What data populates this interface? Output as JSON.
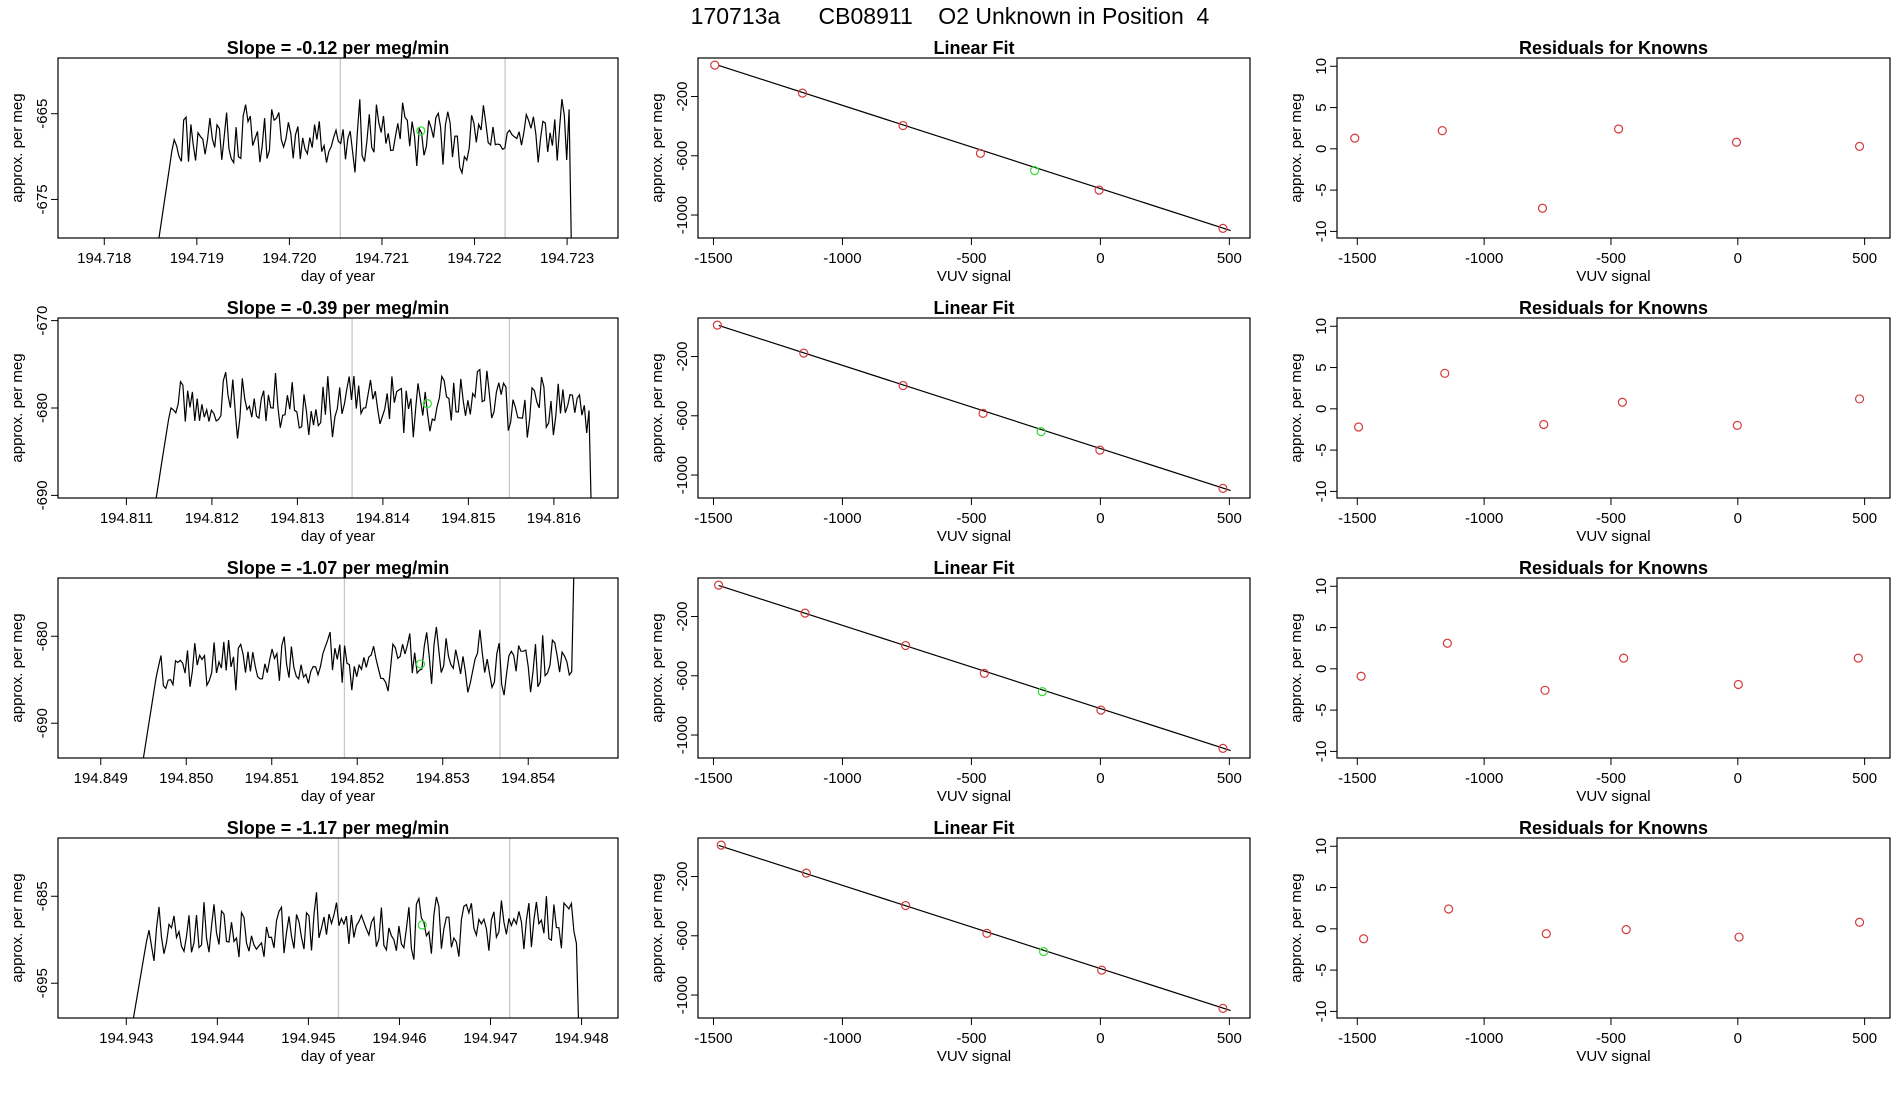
{
  "title": "170713a      CB08911    O2 Unknown in Position  4",
  "colors": {
    "line": "#000000",
    "known_point": "#d33a3a",
    "unknown_point": "#33dd33",
    "marker_line": "#c8c8c8",
    "frame": "#000000"
  },
  "chart_data": [
    {
      "type": "line",
      "row": 1,
      "title": "Slope =  -0.12  per meg/min",
      "xlabel": "day of year",
      "ylabel": "approx. per meg",
      "xlim": [
        194.7175,
        194.72355
      ],
      "ylim": [
        -679.5,
        -658.5
      ],
      "xticks": [
        194.718,
        194.719,
        194.72,
        194.721,
        194.722,
        194.723
      ],
      "xtick_labels": [
        "194.718",
        "194.719",
        "194.720",
        "194.721",
        "194.722",
        "194.723"
      ],
      "yticks": [
        -675,
        -665
      ],
      "ytick_labels": [
        "-675",
        "-665"
      ],
      "marker_lines": [
        194.72055,
        194.72233
      ],
      "x_start": 194.71855,
      "x_end": 194.72315,
      "n_points": 180,
      "base": -667.5,
      "amp": 3.0,
      "seed": 11,
      "unknown_point": {
        "x": 194.72142,
        "y": -667.0
      }
    },
    {
      "type": "line",
      "row": 2,
      "title": "Slope =  -0.39  per meg/min",
      "xlabel": "day of year",
      "ylabel": "approx. per meg",
      "xlim": [
        194.8102,
        194.81675
      ],
      "ylim": [
        -690.3,
        -669.7
      ],
      "xticks": [
        194.811,
        194.812,
        194.813,
        194.814,
        194.815,
        194.816
      ],
      "xtick_labels": [
        "194.811",
        "194.812",
        "194.813",
        "194.814",
        "194.815",
        "194.816"
      ],
      "yticks": [
        -690,
        -680,
        -670
      ],
      "ytick_labels": [
        "-690",
        "-680",
        "-670"
      ],
      "marker_lines": [
        194.81364,
        194.81548
      ],
      "x_start": 194.8113,
      "x_end": 194.81655,
      "n_points": 190,
      "base": -679.5,
      "amp": 3.0,
      "seed": 23,
      "unknown_point": {
        "x": 194.81452,
        "y": -679.5
      }
    },
    {
      "type": "line",
      "row": 3,
      "title": "Slope =  -1.07  per meg/min",
      "xlabel": "day of year",
      "ylabel": "approx. per meg",
      "xlim": [
        194.8485,
        194.85505
      ],
      "ylim": [
        -694.0,
        -673.3
      ],
      "xticks": [
        194.849,
        194.85,
        194.851,
        194.852,
        194.853,
        194.854
      ],
      "xtick_labels": [
        "194.849",
        "194.850",
        "194.851",
        "194.852",
        "194.853",
        "194.854"
      ],
      "yticks": [
        -690,
        -680
      ],
      "ytick_labels": [
        "-690",
        "-680"
      ],
      "marker_lines": [
        194.85185,
        194.85367
      ],
      "x_start": 194.84945,
      "x_end": 194.85465,
      "n_points": 185,
      "base": -683.0,
      "amp": 2.6,
      "seed": 37,
      "unknown_point": {
        "x": 194.85274,
        "y": -683.2
      }
    },
    {
      "type": "line",
      "row": 4,
      "title": "Slope =  -1.17  per meg/min",
      "xlabel": "day of year",
      "ylabel": "approx. per meg",
      "xlim": [
        194.94225,
        194.9484
      ],
      "ylim": [
        -699.0,
        -678.3
      ],
      "xticks": [
        194.943,
        194.944,
        194.945,
        194.946,
        194.947,
        194.948
      ],
      "xtick_labels": [
        "194.943",
        "194.944",
        "194.945",
        "194.946",
        "194.947",
        "194.948"
      ],
      "yticks": [
        -695,
        -685
      ],
      "ytick_labels": [
        "-695",
        "-685"
      ],
      "marker_lines": [
        194.94533,
        194.94721
      ],
      "x_start": 194.94303,
      "x_end": 194.94808,
      "n_points": 185,
      "base": -688.5,
      "amp": 2.8,
      "seed": 53,
      "unknown_point": {
        "x": 194.94625,
        "y": -688.3
      }
    },
    {
      "type": "scatter",
      "row": 1,
      "title": "Linear Fit",
      "xlabel": "VUV signal",
      "ylabel": "approx. per meg",
      "xlim": [
        -1560,
        580
      ],
      "ylim": [
        -1155,
        60
      ],
      "xticks": [
        -1500,
        -1000,
        -500,
        0,
        500
      ],
      "xtick_labels": [
        "-1500",
        "-1000",
        "-500",
        "0",
        "500"
      ],
      "yticks": [
        -1000,
        -600,
        -200
      ],
      "ytick_labels": [
        "-1000",
        "-600",
        "-200"
      ],
      "fit_line": [
        [
          -1480,
          10
        ],
        [
          505,
          -1105
        ]
      ],
      "known_points": [
        [
          -1495,
          12
        ],
        [
          -1155,
          -177
        ],
        [
          -765,
          -396
        ],
        [
          -465,
          -584
        ],
        [
          -5,
          -832
        ],
        [
          475,
          -1090
        ]
      ],
      "unknown_points": [
        [
          -255,
          -700
        ]
      ]
    },
    {
      "type": "scatter",
      "row": 2,
      "title": "Linear Fit",
      "xlabel": "VUV signal",
      "ylabel": "approx. per meg",
      "xlim": [
        -1560,
        580
      ],
      "ylim": [
        -1155,
        60
      ],
      "xticks": [
        -1500,
        -1000,
        -500,
        0,
        500
      ],
      "xtick_labels": [
        "-1500",
        "-1000",
        "-500",
        "0",
        "500"
      ],
      "yticks": [
        -1000,
        -600,
        -200
      ],
      "ytick_labels": [
        "-1000",
        "-600",
        "-200"
      ],
      "fit_line": [
        [
          -1480,
          10
        ],
        [
          505,
          -1105
        ]
      ],
      "known_points": [
        [
          -1485,
          12
        ],
        [
          -1150,
          -177
        ],
        [
          -765,
          -396
        ],
        [
          -455,
          -584
        ],
        [
          -2,
          -832
        ],
        [
          475,
          -1090
        ]
      ],
      "unknown_points": [
        [
          -230,
          -707
        ]
      ]
    },
    {
      "type": "scatter",
      "row": 3,
      "title": "Linear Fit",
      "xlabel": "VUV signal",
      "ylabel": "approx. per meg",
      "xlim": [
        -1560,
        580
      ],
      "ylim": [
        -1155,
        60
      ],
      "xticks": [
        -1500,
        -1000,
        -500,
        0,
        500
      ],
      "xtick_labels": [
        "-1500",
        "-1000",
        "-500",
        "0",
        "500"
      ],
      "yticks": [
        -1000,
        -600,
        -200
      ],
      "ytick_labels": [
        "-1000",
        "-600",
        "-200"
      ],
      "fit_line": [
        [
          -1480,
          10
        ],
        [
          505,
          -1105
        ]
      ],
      "known_points": [
        [
          -1480,
          12
        ],
        [
          -1145,
          -177
        ],
        [
          -755,
          -396
        ],
        [
          -450,
          -584
        ],
        [
          2,
          -832
        ],
        [
          475,
          -1090
        ]
      ],
      "unknown_points": [
        [
          -225,
          -707
        ]
      ]
    },
    {
      "type": "scatter",
      "row": 4,
      "title": "Linear Fit",
      "xlabel": "VUV signal",
      "ylabel": "approx. per meg",
      "xlim": [
        -1560,
        580
      ],
      "ylim": [
        -1155,
        60
      ],
      "xticks": [
        -1500,
        -1000,
        -500,
        0,
        500
      ],
      "xtick_labels": [
        "-1500",
        "-1000",
        "-500",
        "0",
        "500"
      ],
      "yticks": [
        -1000,
        -600,
        -200
      ],
      "ytick_labels": [
        "-1000",
        "-600",
        "-200"
      ],
      "fit_line": [
        [
          -1480,
          10
        ],
        [
          505,
          -1105
        ]
      ],
      "known_points": [
        [
          -1470,
          12
        ],
        [
          -1140,
          -177
        ],
        [
          -755,
          -396
        ],
        [
          -440,
          -584
        ],
        [
          5,
          -832
        ],
        [
          475,
          -1090
        ]
      ],
      "unknown_points": [
        [
          -220,
          -707
        ]
      ]
    },
    {
      "type": "scatter",
      "row": 1,
      "title": "Residuals for Knowns",
      "xlabel": "VUV signal",
      "ylabel": "approx. per meg",
      "xlim": [
        -1580,
        600
      ],
      "ylim": [
        -10.8,
        11.0
      ],
      "xticks": [
        -1500,
        -1000,
        -500,
        0,
        500
      ],
      "xtick_labels": [
        "-1500",
        "-1000",
        "-500",
        "0",
        "500"
      ],
      "yticks": [
        -10,
        -5,
        0,
        5,
        10
      ],
      "ytick_labels": [
        "-10",
        "-5",
        "0",
        "5",
        "10"
      ],
      "known_points": [
        [
          -1510,
          1.3
        ],
        [
          -1165,
          2.2
        ],
        [
          -770,
          -7.2
        ],
        [
          -470,
          2.4
        ],
        [
          -5,
          0.8
        ],
        [
          480,
          0.3
        ]
      ]
    },
    {
      "type": "scatter",
      "row": 2,
      "title": "Residuals for Knowns",
      "xlabel": "VUV signal",
      "ylabel": "approx. per meg",
      "xlim": [
        -1580,
        600
      ],
      "ylim": [
        -10.8,
        11.0
      ],
      "xticks": [
        -1500,
        -1000,
        -500,
        0,
        500
      ],
      "xtick_labels": [
        "-1500",
        "-1000",
        "-500",
        "0",
        "500"
      ],
      "yticks": [
        -10,
        -5,
        0,
        5,
        10
      ],
      "ytick_labels": [
        "-10",
        "-5",
        "0",
        "5",
        "10"
      ],
      "known_points": [
        [
          -1495,
          -2.2
        ],
        [
          -1155,
          4.3
        ],
        [
          -765,
          -1.9
        ],
        [
          -455,
          0.8
        ],
        [
          -2,
          -2.0
        ],
        [
          480,
          1.2
        ]
      ]
    },
    {
      "type": "scatter",
      "row": 3,
      "title": "Residuals for Knowns",
      "xlabel": "VUV signal",
      "ylabel": "approx. per meg",
      "xlim": [
        -1580,
        600
      ],
      "ylim": [
        -10.8,
        11.0
      ],
      "xticks": [
        -1500,
        -1000,
        -500,
        0,
        500
      ],
      "xtick_labels": [
        "-1500",
        "-1000",
        "-500",
        "0",
        "500"
      ],
      "yticks": [
        -10,
        -5,
        0,
        5,
        10
      ],
      "ytick_labels": [
        "-10",
        "-5",
        "0",
        "5",
        "10"
      ],
      "known_points": [
        [
          -1485,
          -0.9
        ],
        [
          -1145,
          3.1
        ],
        [
          -760,
          -2.6
        ],
        [
          -450,
          1.3
        ],
        [
          2,
          -1.9
        ],
        [
          475,
          1.3
        ]
      ]
    },
    {
      "type": "scatter",
      "row": 4,
      "title": "Residuals for Knowns",
      "xlabel": "VUV signal",
      "ylabel": "approx. per meg",
      "xlim": [
        -1580,
        600
      ],
      "ylim": [
        -10.8,
        11.0
      ],
      "xticks": [
        -1500,
        -1000,
        -500,
        0,
        500
      ],
      "xtick_labels": [
        "-1500",
        "-1000",
        "-500",
        "0",
        "500"
      ],
      "yticks": [
        -10,
        -5,
        0,
        5,
        10
      ],
      "ytick_labels": [
        "-10",
        "-5",
        "0",
        "5",
        "10"
      ],
      "known_points": [
        [
          -1475,
          -1.2
        ],
        [
          -1140,
          2.4
        ],
        [
          -755,
          -0.6
        ],
        [
          -440,
          -0.1
        ],
        [
          5,
          -1.0
        ],
        [
          480,
          0.8
        ]
      ]
    }
  ]
}
